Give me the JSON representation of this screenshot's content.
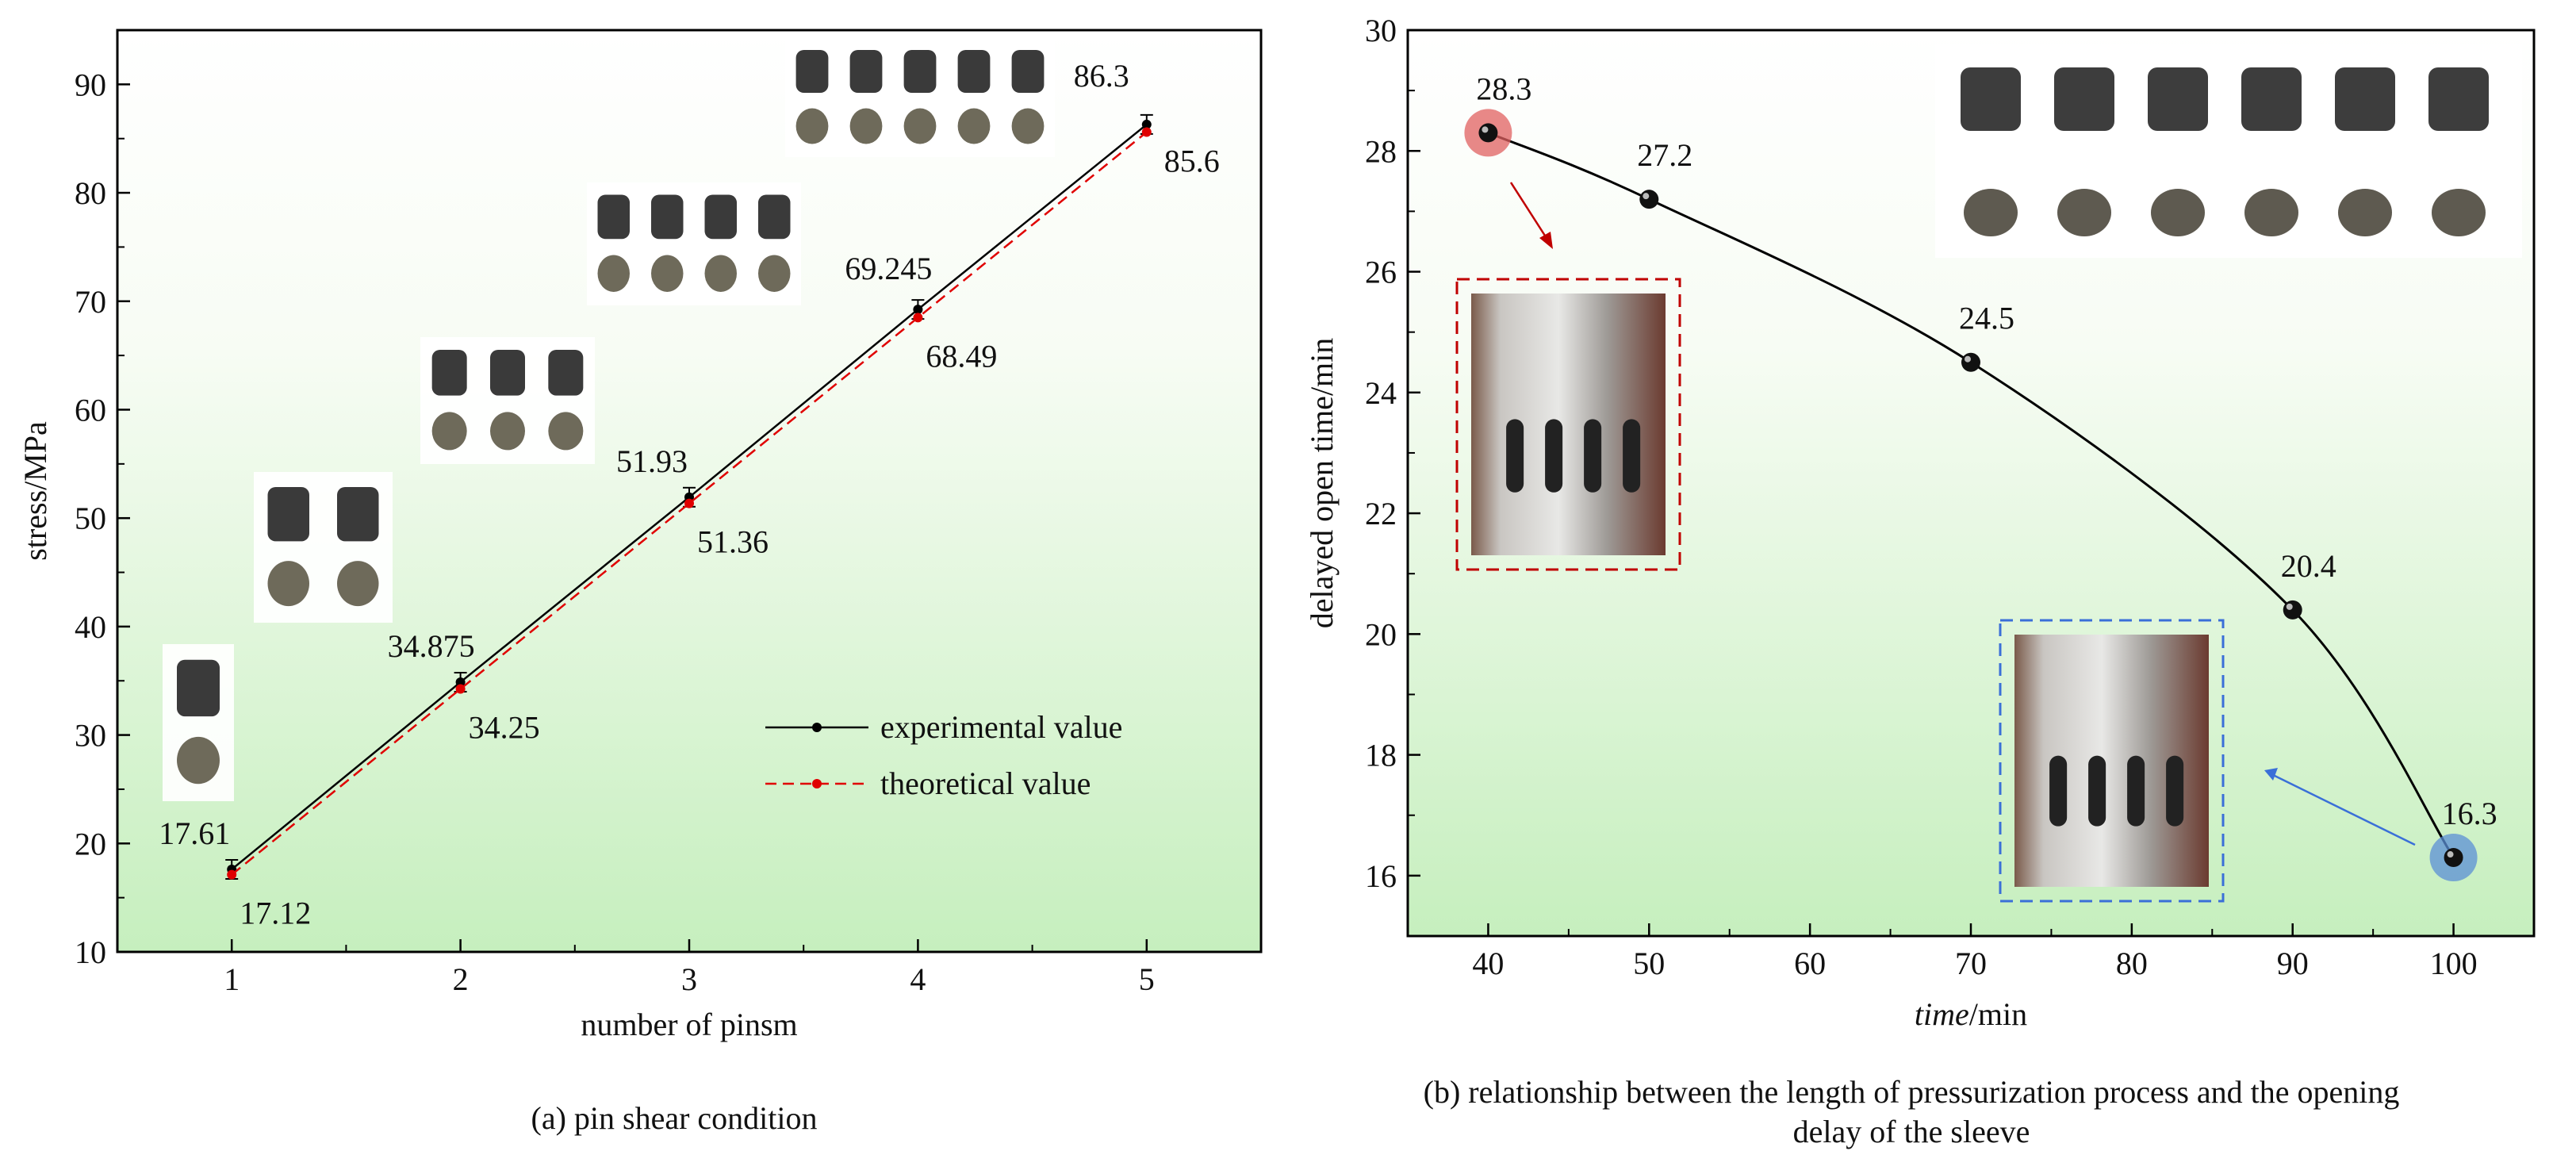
{
  "charts": {
    "a": {
      "caption": "(a) pin shear condition"
    },
    "b": {
      "caption_line1": "(b) relationship between the length of pressurization process and the opening",
      "caption_line2": "delay of the sleeve"
    }
  },
  "chart_data": [
    {
      "type": "line",
      "title": "",
      "xlabel": "number of pinsm",
      "ylabel": "stress/MPa",
      "xlim": [
        0.5,
        5.5
      ],
      "ylim": [
        10,
        95
      ],
      "x_ticks": [
        "1",
        "2",
        "3",
        "4",
        "5"
      ],
      "y_ticks": [
        "10",
        "20",
        "30",
        "40",
        "50",
        "60",
        "70",
        "80",
        "90"
      ],
      "grid": false,
      "legend_position": "lower-right",
      "x": [
        1,
        2,
        3,
        4,
        5
      ],
      "series": [
        {
          "name": "experimental value",
          "color": "#000000",
          "style": "solid",
          "values": [
            17.61,
            34.875,
            51.93,
            69.245,
            86.3
          ],
          "labels": [
            "17.61",
            "34.875",
            "51.93",
            "69.245",
            "86.3"
          ]
        },
        {
          "name": "theoretical value",
          "color": "#e00000",
          "style": "dashed",
          "values": [
            17.12,
            34.25,
            51.36,
            68.49,
            85.6
          ],
          "labels": [
            "17.12",
            "34.25",
            "51.36",
            "68.49",
            "85.6"
          ]
        }
      ]
    },
    {
      "type": "scatter",
      "title": "",
      "xlabel_italic": "time",
      "xlabel_rest": "/min",
      "ylabel": "delayed open time/min",
      "xlim": [
        35,
        105
      ],
      "ylim": [
        15,
        30
      ],
      "x_ticks": [
        "40",
        "50",
        "60",
        "70",
        "80",
        "90",
        "100"
      ],
      "y_ticks": [
        "16",
        "18",
        "20",
        "22",
        "24",
        "26",
        "28",
        "30"
      ],
      "grid": false,
      "x": [
        40,
        50,
        70,
        90,
        100
      ],
      "series": [
        {
          "name": "delayed open time",
          "color": "#000000",
          "values": [
            28.3,
            27.2,
            24.5,
            20.4,
            16.3
          ],
          "labels": [
            "28.3",
            "27.2",
            "24.5",
            "20.4",
            "16.3"
          ]
        }
      ],
      "highlights": [
        {
          "x": 40,
          "y": 28.3,
          "color": "#e06060"
        },
        {
          "x": 100,
          "y": 16.3,
          "color": "#5b8fd6"
        }
      ]
    }
  ]
}
